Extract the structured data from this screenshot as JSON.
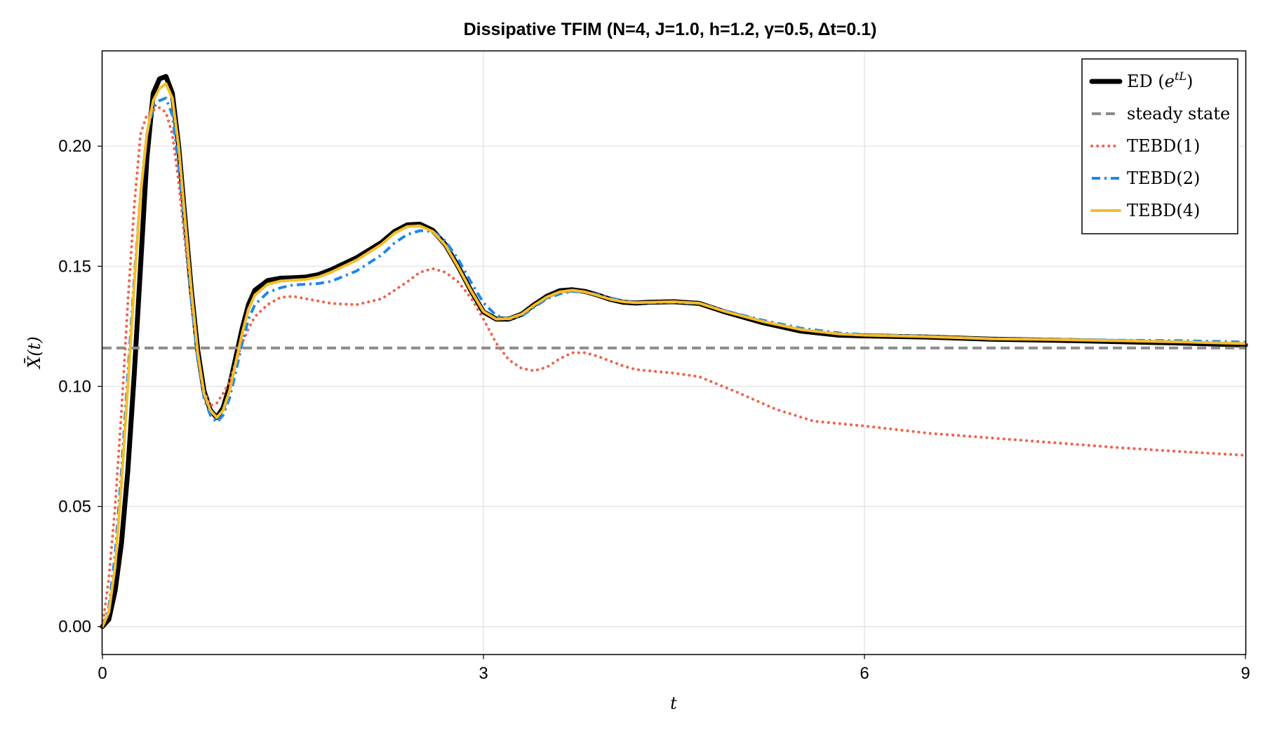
{
  "chart_data": {
    "type": "line",
    "title": "Dissipative TFIM (N=4, J=1.0, h=1.2, γ=0.5, Δt=0.1)",
    "xlabel": "t",
    "ylabel": "X̄(t)",
    "xlim": [
      0,
      9
    ],
    "ylim": [
      -0.0115,
      0.2395
    ],
    "xticks": [
      0,
      3,
      6,
      9
    ],
    "xtick_labels": [
      "0",
      "3",
      "6",
      "9"
    ],
    "yticks": [
      0.0,
      0.05,
      0.1,
      0.15,
      0.2
    ],
    "ytick_labels": [
      "0.00",
      "0.05",
      "0.10",
      "0.15",
      "0.20"
    ],
    "grid": true,
    "legend_position": "top-right",
    "series": [
      {
        "name": "ED (e^{tL})",
        "color": "#000000",
        "style": "solid",
        "x": [
          0,
          0.05,
          0.1,
          0.15,
          0.2,
          0.25,
          0.3,
          0.35,
          0.4,
          0.45,
          0.5,
          0.55,
          0.6,
          0.65,
          0.7,
          0.75,
          0.8,
          0.85,
          0.9,
          0.95,
          1.0,
          1.05,
          1.1,
          1.15,
          1.2,
          1.3,
          1.4,
          1.5,
          1.6,
          1.7,
          1.8,
          2.0,
          2.2,
          2.3,
          2.4,
          2.5,
          2.6,
          2.7,
          2.8,
          2.9,
          3.0,
          3.1,
          3.2,
          3.3,
          3.4,
          3.5,
          3.6,
          3.7,
          3.8,
          3.9,
          4.0,
          4.1,
          4.2,
          4.3,
          4.5,
          4.7,
          4.9,
          5.2,
          5.5,
          5.8,
          6.0,
          6.5,
          7.0,
          7.5,
          8.0,
          8.5,
          9.0
        ],
        "values": [
          0.0,
          0.003,
          0.015,
          0.035,
          0.065,
          0.105,
          0.15,
          0.195,
          0.222,
          0.228,
          0.229,
          0.222,
          0.2,
          0.17,
          0.14,
          0.115,
          0.098,
          0.09,
          0.087,
          0.091,
          0.1,
          0.112,
          0.124,
          0.134,
          0.14,
          0.144,
          0.145,
          0.1452,
          0.1455,
          0.1465,
          0.1485,
          0.1535,
          0.16,
          0.1645,
          0.1672,
          0.1675,
          0.165,
          0.159,
          0.15,
          0.14,
          0.131,
          0.128,
          0.128,
          0.13,
          0.134,
          0.1375,
          0.1398,
          0.1402,
          0.1395,
          0.138,
          0.1362,
          0.135,
          0.1347,
          0.135,
          0.1352,
          0.1345,
          0.131,
          0.1265,
          0.123,
          0.1213,
          0.121,
          0.1205,
          0.1196,
          0.1192,
          0.1186,
          0.118,
          0.1172
        ]
      },
      {
        "name": "steady state",
        "color": "#8c8c8c",
        "style": "dashed",
        "x": [
          0,
          9
        ],
        "values": [
          0.116,
          0.116
        ]
      },
      {
        "name": "TEBD(1)",
        "color": "#f26049",
        "style": "dotted",
        "x": [
          0,
          0.05,
          0.1,
          0.15,
          0.2,
          0.25,
          0.3,
          0.35,
          0.4,
          0.45,
          0.5,
          0.55,
          0.6,
          0.65,
          0.7,
          0.75,
          0.8,
          0.85,
          0.9,
          0.95,
          1.0,
          1.05,
          1.1,
          1.15,
          1.2,
          1.3,
          1.4,
          1.5,
          1.6,
          1.7,
          1.8,
          2.0,
          2.2,
          2.4,
          2.5,
          2.6,
          2.7,
          2.8,
          2.9,
          3.0,
          3.1,
          3.2,
          3.3,
          3.4,
          3.5,
          3.6,
          3.7,
          3.8,
          3.9,
          4.0,
          4.1,
          4.2,
          4.3,
          4.5,
          4.7,
          5.0,
          5.3,
          5.6,
          6.0,
          6.5,
          7.0,
          7.5,
          8.0,
          8.5,
          9.0
        ],
        "values": [
          0.0,
          0.02,
          0.05,
          0.09,
          0.135,
          0.175,
          0.205,
          0.213,
          0.215,
          0.216,
          0.214,
          0.205,
          0.185,
          0.16,
          0.135,
          0.112,
          0.098,
          0.092,
          0.093,
          0.097,
          0.102,
          0.11,
          0.118,
          0.124,
          0.129,
          0.134,
          0.137,
          0.1375,
          0.1365,
          0.1355,
          0.1345,
          0.134,
          0.1365,
          0.1435,
          0.1475,
          0.149,
          0.1475,
          0.1435,
          0.137,
          0.128,
          0.118,
          0.111,
          0.1075,
          0.1065,
          0.108,
          0.1115,
          0.114,
          0.114,
          0.1125,
          0.1105,
          0.1085,
          0.107,
          0.1065,
          0.1055,
          0.104,
          0.0975,
          0.0905,
          0.0855,
          0.0835,
          0.0805,
          0.0785,
          0.0765,
          0.0745,
          0.0728,
          0.0713
        ]
      },
      {
        "name": "TEBD(2)",
        "color": "#1f87ec",
        "style": "dashdot",
        "x": [
          0,
          0.05,
          0.1,
          0.15,
          0.2,
          0.25,
          0.3,
          0.35,
          0.4,
          0.45,
          0.5,
          0.55,
          0.6,
          0.65,
          0.7,
          0.75,
          0.8,
          0.85,
          0.9,
          0.95,
          1.0,
          1.05,
          1.1,
          1.15,
          1.2,
          1.3,
          1.4,
          1.5,
          1.6,
          1.7,
          1.8,
          2.0,
          2.2,
          2.3,
          2.4,
          2.5,
          2.6,
          2.7,
          2.8,
          2.9,
          3.0,
          3.1,
          3.2,
          3.3,
          3.4,
          3.5,
          3.6,
          3.7,
          3.8,
          3.9,
          4.0,
          4.1,
          4.2,
          4.3,
          4.5,
          4.7,
          4.9,
          5.2,
          5.5,
          5.8,
          6.0,
          6.5,
          7.0,
          7.5,
          8.0,
          8.5,
          9.0
        ],
        "values": [
          0.0,
          0.008,
          0.03,
          0.065,
          0.105,
          0.145,
          0.18,
          0.205,
          0.216,
          0.219,
          0.22,
          0.213,
          0.192,
          0.165,
          0.136,
          0.111,
          0.095,
          0.088,
          0.085,
          0.088,
          0.095,
          0.106,
          0.118,
          0.128,
          0.134,
          0.139,
          0.141,
          0.1422,
          0.1425,
          0.1428,
          0.1437,
          0.148,
          0.1548,
          0.1597,
          0.1632,
          0.1648,
          0.1645,
          0.1605,
          0.153,
          0.1435,
          0.1348,
          0.1295,
          0.128,
          0.1292,
          0.133,
          0.1365,
          0.1385,
          0.1395,
          0.1392,
          0.1382,
          0.1368,
          0.1356,
          0.1348,
          0.1348,
          0.135,
          0.1345,
          0.1315,
          0.1275,
          0.1242,
          0.1222,
          0.1216,
          0.1208,
          0.1198,
          0.1196,
          0.1192,
          0.119,
          0.1184
        ]
      },
      {
        "name": "TEBD(4)",
        "color": "#f6bd2b",
        "style": "solid",
        "x": [
          0,
          0.05,
          0.1,
          0.15,
          0.2,
          0.25,
          0.3,
          0.35,
          0.4,
          0.45,
          0.5,
          0.55,
          0.6,
          0.65,
          0.7,
          0.75,
          0.8,
          0.85,
          0.9,
          0.95,
          1.0,
          1.05,
          1.1,
          1.15,
          1.2,
          1.3,
          1.4,
          1.5,
          1.6,
          1.7,
          1.8,
          2.0,
          2.2,
          2.3,
          2.4,
          2.5,
          2.6,
          2.7,
          2.8,
          2.9,
          3.0,
          3.1,
          3.2,
          3.3,
          3.4,
          3.5,
          3.6,
          3.7,
          3.8,
          3.9,
          4.0,
          4.1,
          4.2,
          4.3,
          4.5,
          4.7,
          4.9,
          5.2,
          5.5,
          5.8,
          6.0,
          6.5,
          7.0,
          7.5,
          8.0,
          8.5,
          9.0
        ],
        "values": [
          0.0,
          0.006,
          0.025,
          0.06,
          0.1,
          0.142,
          0.18,
          0.205,
          0.219,
          0.224,
          0.226,
          0.22,
          0.2,
          0.17,
          0.14,
          0.114,
          0.097,
          0.09,
          0.087,
          0.09,
          0.098,
          0.11,
          0.122,
          0.132,
          0.138,
          0.1425,
          0.1438,
          0.1442,
          0.1445,
          0.1455,
          0.1475,
          0.1525,
          0.1592,
          0.1638,
          0.1665,
          0.1668,
          0.1645,
          0.1588,
          0.1498,
          0.14,
          0.1312,
          0.128,
          0.1282,
          0.13,
          0.1338,
          0.1372,
          0.1393,
          0.14,
          0.1393,
          0.1378,
          0.1362,
          0.1352,
          0.1348,
          0.135,
          0.1352,
          0.1346,
          0.1312,
          0.127,
          0.1236,
          0.1218,
          0.1213,
          0.1207,
          0.1198,
          0.1195,
          0.119,
          0.1185,
          0.1178
        ]
      }
    ]
  },
  "legend": {
    "items": [
      {
        "base": "ED",
        "paren_open": " (",
        "e": "e",
        "sup": "tL",
        "paren_close": ")"
      },
      {
        "text": "steady state"
      },
      {
        "text": "TEBD(1)"
      },
      {
        "text": "TEBD(2)"
      },
      {
        "text": "TEBD(4)"
      }
    ]
  }
}
